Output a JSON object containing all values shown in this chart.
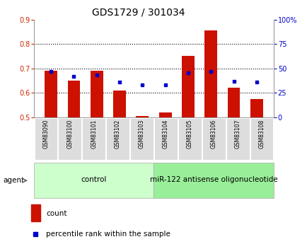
{
  "title": "GDS1729 / 301034",
  "categories": [
    "GSM83090",
    "GSM83100",
    "GSM83101",
    "GSM83102",
    "GSM83103",
    "GSM83104",
    "GSM83105",
    "GSM83106",
    "GSM83107",
    "GSM83108"
  ],
  "red_values": [
    0.69,
    0.65,
    0.69,
    0.61,
    0.505,
    0.52,
    0.75,
    0.855,
    0.62,
    0.575
  ],
  "blue_values": [
    47,
    42,
    43,
    36,
    33,
    33,
    45,
    47,
    37,
    36
  ],
  "ylim_left": [
    0.5,
    0.9
  ],
  "ylim_right": [
    0,
    100
  ],
  "yticks_left": [
    0.5,
    0.6,
    0.7,
    0.8,
    0.9
  ],
  "yticks_right": [
    0,
    25,
    50,
    75,
    100
  ],
  "ytick_labels_right": [
    "0",
    "25",
    "50",
    "75",
    "100%"
  ],
  "bar_color": "#cc1100",
  "dot_color": "#0000cc",
  "bar_width": 0.55,
  "bg_color": "#ffffff",
  "agent_groups": [
    {
      "label": "control",
      "span": 5,
      "color": "#ccffcc"
    },
    {
      "label": "miR-122 antisense oligonucleotide",
      "span": 5,
      "color": "#99ee99"
    }
  ],
  "agent_label": "agent",
  "legend_count": "count",
  "legend_pct": "percentile rank within the sample",
  "title_fontsize": 10,
  "tick_fontsize": 7,
  "cat_fontsize": 5.5,
  "agent_fontsize": 7.5,
  "legend_fontsize": 7.5,
  "left_tick_color": "#cc2200",
  "right_tick_color": "#0000cc",
  "grid_yticks": [
    0.6,
    0.7,
    0.8
  ]
}
